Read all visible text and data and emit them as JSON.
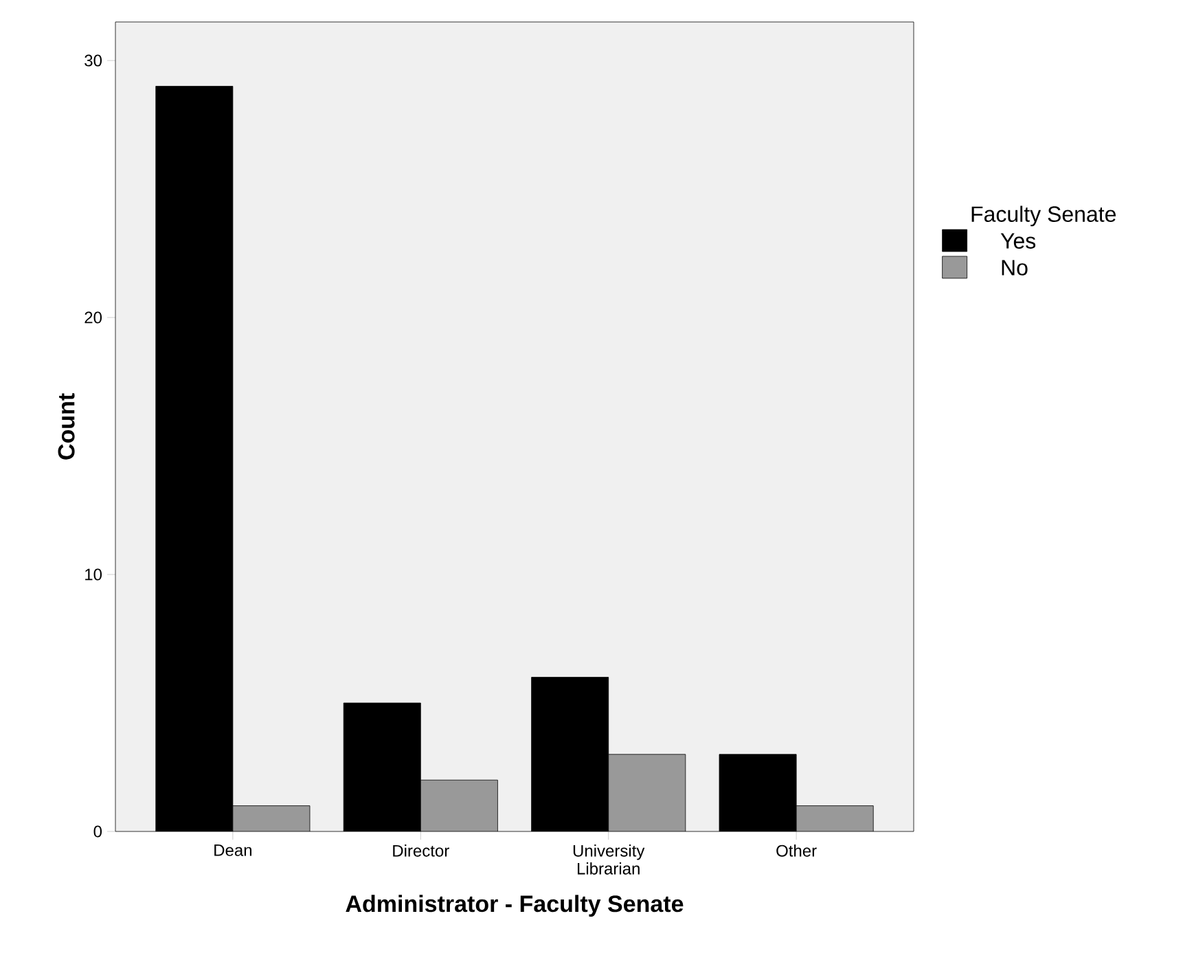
{
  "chart_data": {
    "type": "bar",
    "xlabel": "Administrator - Faculty Senate",
    "ylabel": "Count",
    "legend_title": "Faculty Senate",
    "categories": [
      "Dean",
      "Director",
      "University Librarian",
      "Other"
    ],
    "series": [
      {
        "name": "Yes",
        "color": "#000000",
        "values": [
          29,
          5,
          6,
          3
        ]
      },
      {
        "name": "No",
        "color": "#999999",
        "values": [
          1,
          2,
          3,
          1
        ]
      }
    ],
    "ylim": [
      0,
      31.5
    ],
    "yticks": [
      0,
      10,
      20,
      30
    ],
    "grid": false,
    "legend": "right"
  }
}
